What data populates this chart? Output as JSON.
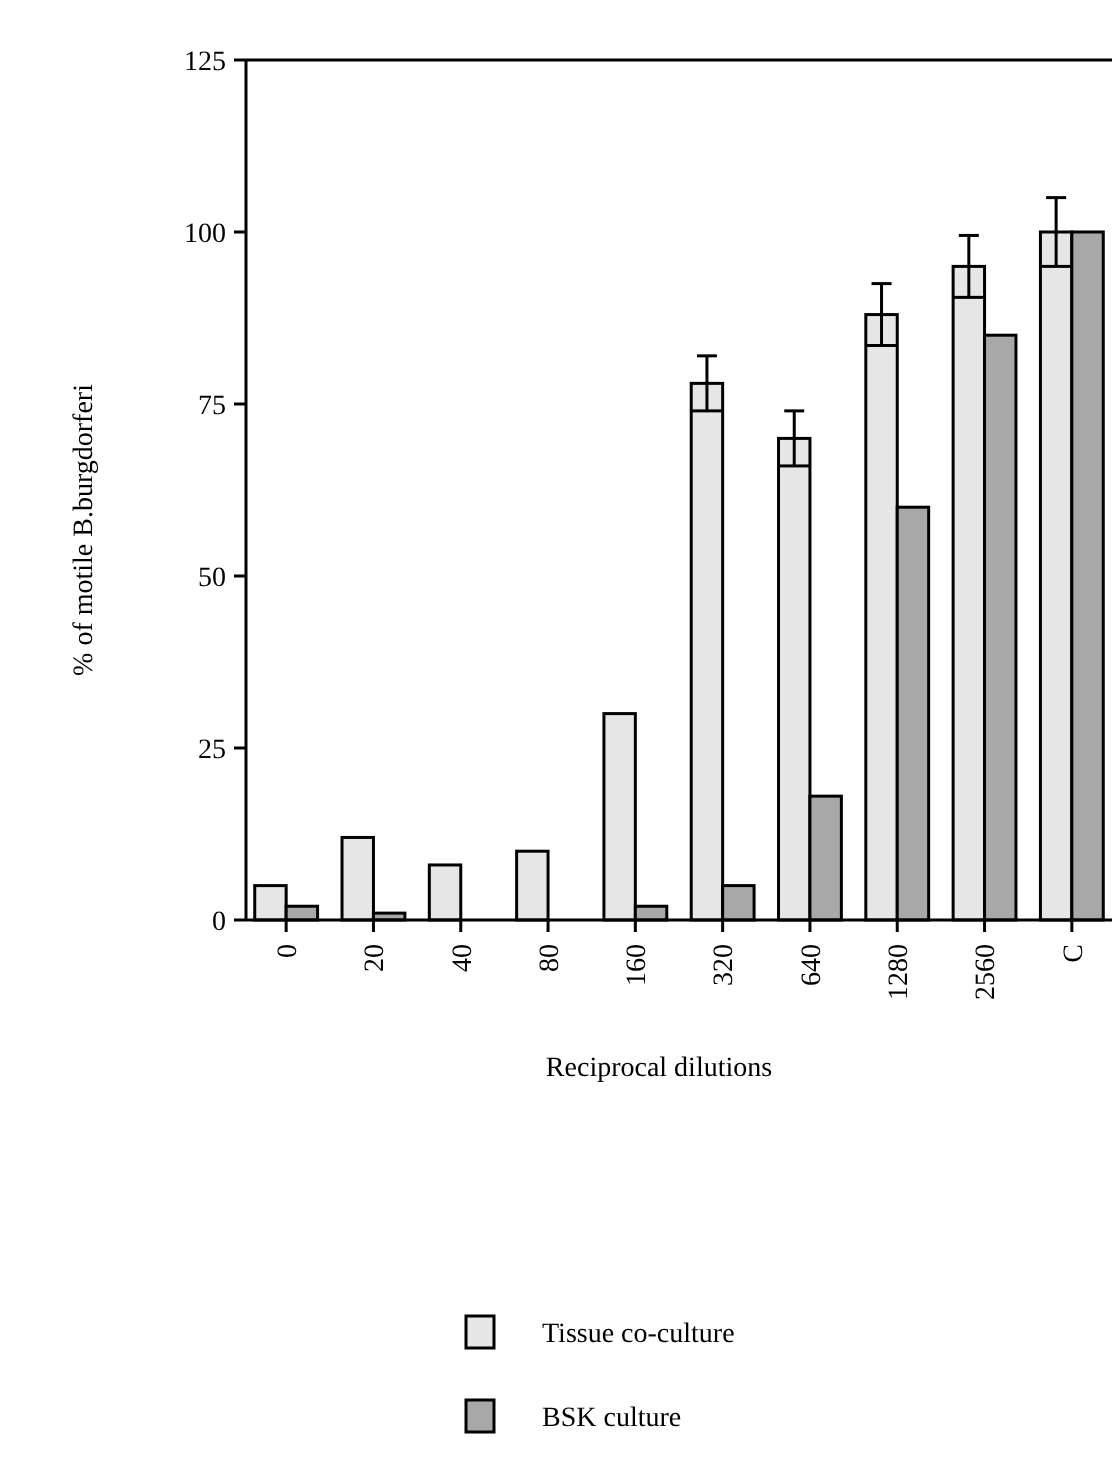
{
  "chart_data": {
    "type": "bar",
    "xlabel": "Reciprocal dilutions",
    "ylabel": "% of motile B.burgdorferi",
    "categories": [
      "0",
      "20",
      "40",
      "80",
      "160",
      "320",
      "640",
      "1280",
      "2560",
      "C"
    ],
    "series": [
      {
        "name": "Tissue co-culture",
        "color": "#e6e6e6",
        "values": [
          5,
          12,
          8,
          10,
          30,
          78,
          70,
          88,
          95,
          100
        ],
        "errors": [
          null,
          null,
          null,
          null,
          null,
          4,
          4,
          4.5,
          4.5,
          5
        ]
      },
      {
        "name": "BSK culture",
        "color": "#a8a8a8",
        "values": [
          2,
          1,
          0,
          0,
          2,
          5,
          18,
          60,
          85,
          100
        ]
      }
    ],
    "ylim": [
      0,
      125
    ],
    "yticks": [
      0,
      25,
      50,
      75,
      100,
      125
    ],
    "legend": "bottom"
  }
}
